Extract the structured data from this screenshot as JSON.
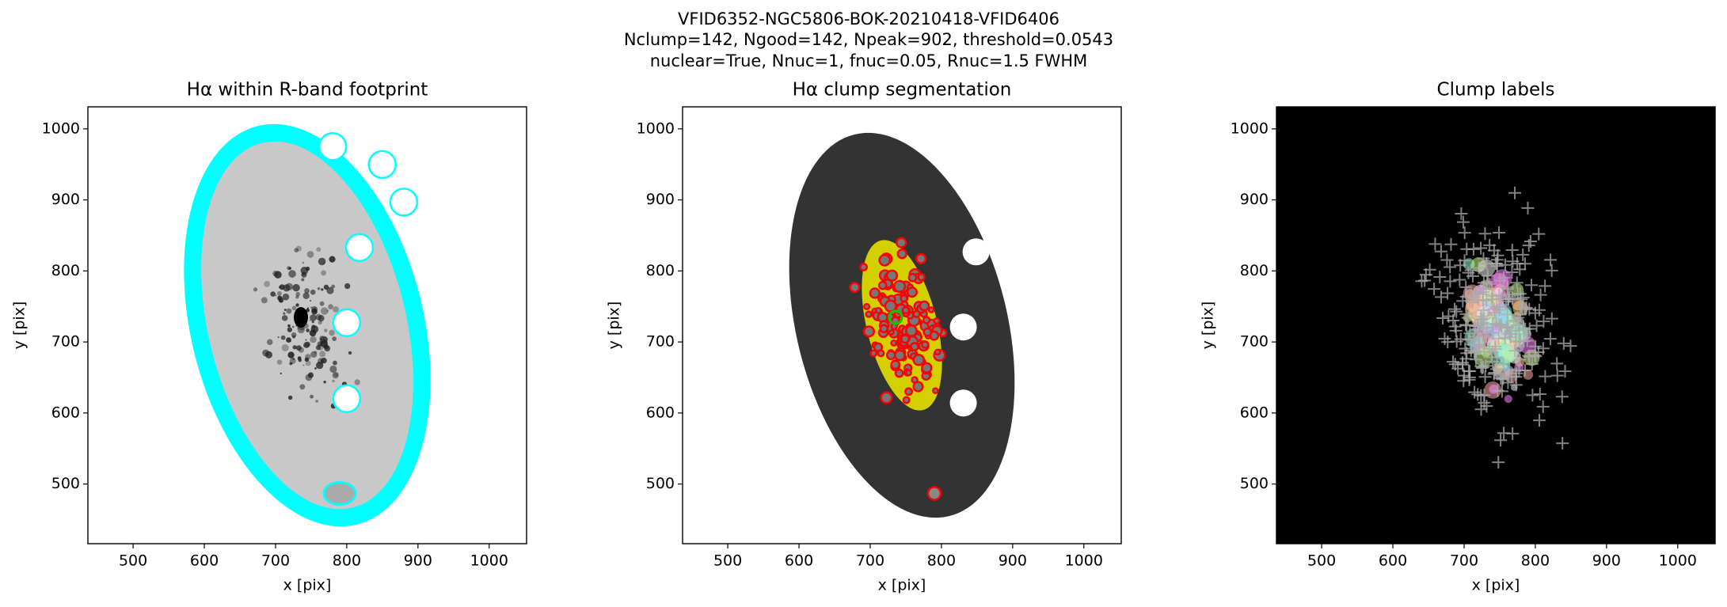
{
  "suptitle": [
    "VFID6352-NGC5806-BOK-20210418-VFID6406",
    "Nclump=142, Ngood=142, Npeak=902, threshold=0.0543",
    "nuclear=True, Nnuc=1, fnuc=0.05, Rnuc=1.5 FWHM"
  ],
  "chart_data": [
    {
      "type": "image",
      "title": "Hα within R-band footprint",
      "xlabel": "x [pix]",
      "ylabel": "y [pix]",
      "xlim": [
        436.5,
        1052.5
      ],
      "ylim": [
        416,
        1031
      ],
      "xticks": [
        500,
        600,
        700,
        800,
        900,
        1000
      ],
      "yticks": [
        500,
        600,
        700,
        800,
        900,
        1000
      ]
    },
    {
      "type": "image",
      "title": "Hα clump segmentation",
      "xlabel": "x [pix]",
      "ylabel": "y [pix]",
      "xlim": [
        436.5,
        1052.5
      ],
      "ylim": [
        416,
        1031
      ],
      "xticks": [
        500,
        600,
        700,
        800,
        900,
        1000
      ],
      "yticks": [
        500,
        600,
        700,
        800,
        900,
        1000
      ]
    },
    {
      "type": "image",
      "title": "Clump labels",
      "xlabel": "x [pix]",
      "ylabel": "y [pix]",
      "xlim": [
        436.5,
        1052.5
      ],
      "ylim": [
        416,
        1031
      ],
      "xticks": [
        500,
        600,
        700,
        800,
        900,
        1000
      ],
      "yticks": [
        500,
        600,
        700,
        800,
        900,
        1000
      ]
    }
  ]
}
